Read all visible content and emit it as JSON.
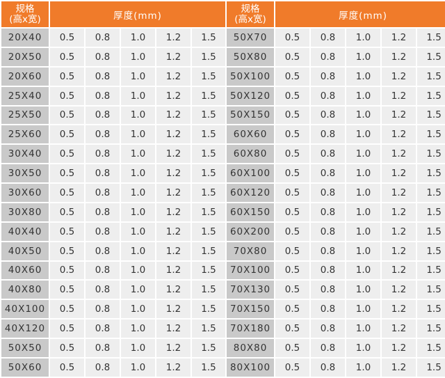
{
  "header": {
    "spec_line1": "规格",
    "spec_line2": "(高x宽)",
    "thickness": "厚度(mm)"
  },
  "thickness_values": [
    "0.5",
    "0.8",
    "1.0",
    "1.2",
    "1.5"
  ],
  "left_sizes": [
    "20X40",
    "20X50",
    "20X60",
    "25X40",
    "25X50",
    "25X60",
    "30X40",
    "30X50",
    "30X60",
    "30X80",
    "40X40",
    "40X50",
    "40X60",
    "40X80",
    "40X100",
    "40X120",
    "50X50",
    "50X60"
  ],
  "right_sizes": [
    "50X70",
    "50X80",
    "50X100",
    "50X120",
    "50X150",
    "60X60",
    "60X80",
    "60X100",
    "60X120",
    "60X150",
    "60X200",
    "70X80",
    "70X100",
    "70X130",
    "70X150",
    "70X180",
    "80X80",
    "80X100"
  ],
  "colors": {
    "header": "#f07b2a",
    "size_cell": "#c9c9c9",
    "value_cell": "#eeeeee"
  }
}
